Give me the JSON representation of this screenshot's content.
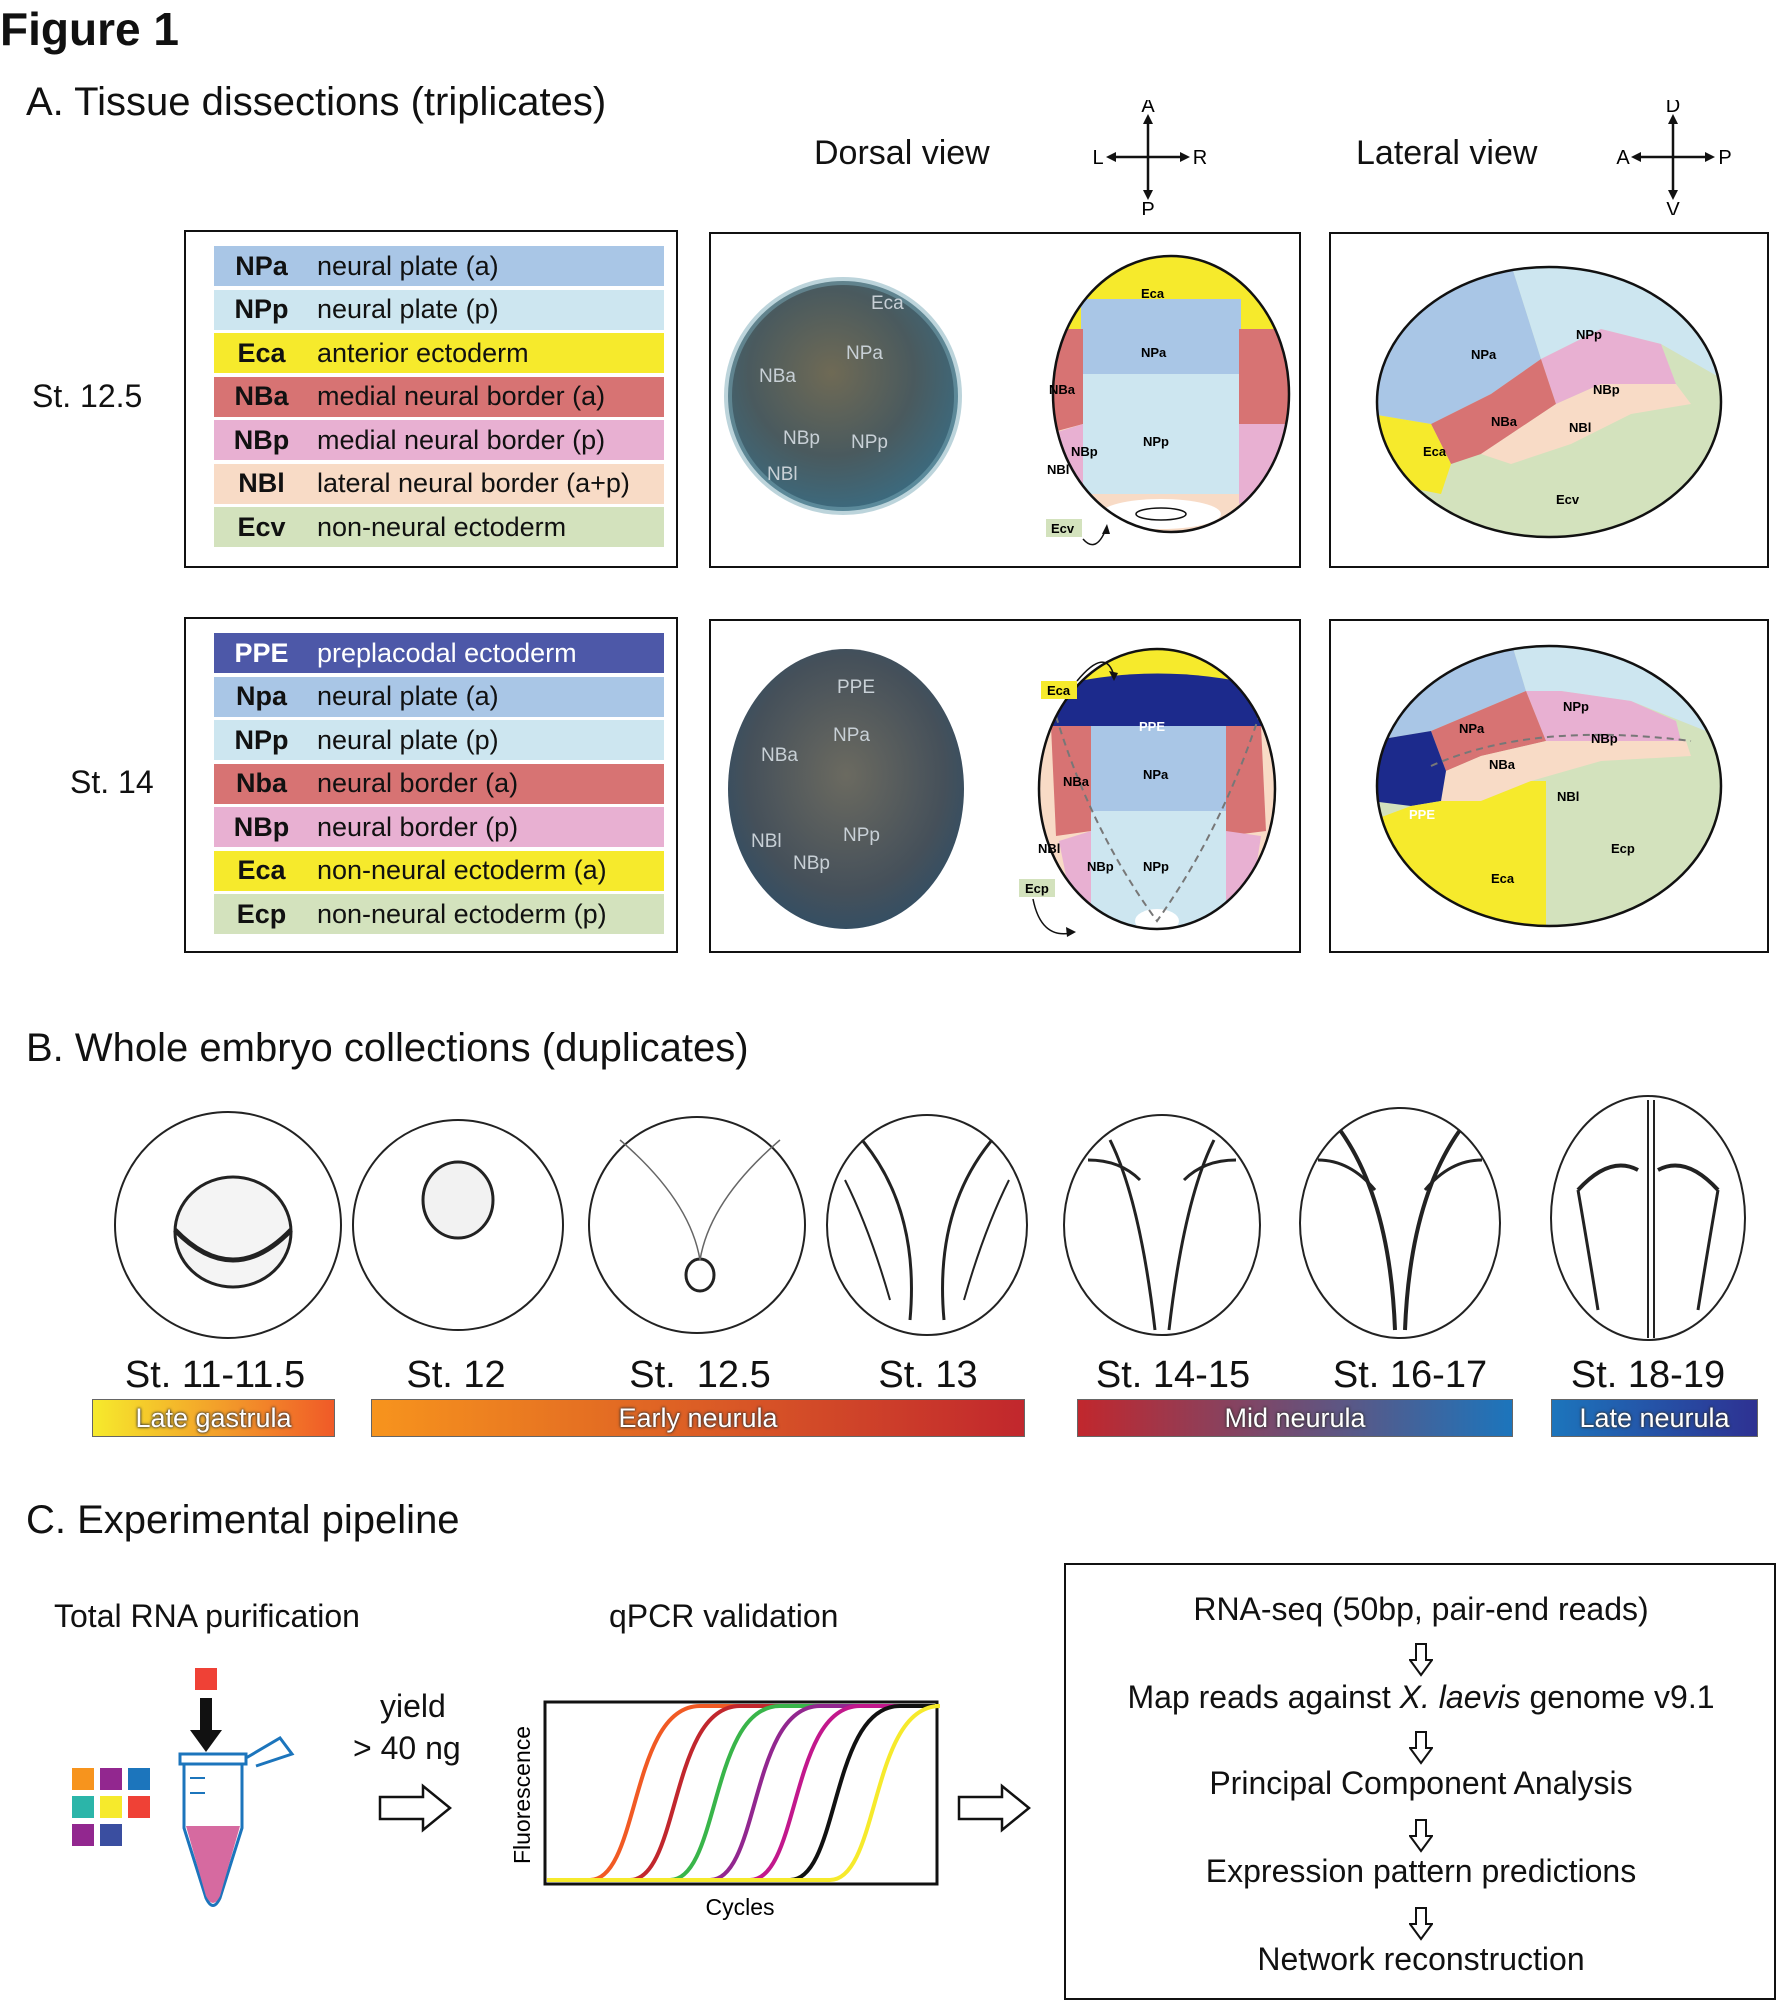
{
  "figure_title": "Figure 1",
  "panel_a": {
    "title": "A. Tissue dissections (triplicates)",
    "dorsal_view": "Dorsal view",
    "lateral_view": "Lateral view",
    "dorsal_axes": {
      "top": "A",
      "bottom": "P",
      "left": "L",
      "right": "R"
    },
    "lateral_axes": {
      "top": "D",
      "bottom": "V",
      "left": "A",
      "right": "P"
    },
    "stages": [
      {
        "label": "St. 12.5",
        "legend": [
          {
            "code": "NPa",
            "desc": "neural plate (a)",
            "color": "#a9c6e6"
          },
          {
            "code": "NPp",
            "desc": "neural plate (p)",
            "color": "#cde6f0"
          },
          {
            "code": "Eca",
            "desc": "anterior ectoderm",
            "color": "#f6ea2c"
          },
          {
            "code": "NBa",
            "desc": "medial neural border (a)",
            "color": "#d77373"
          },
          {
            "code": "NBp",
            "desc": "medial neural border (p)",
            "color": "#e8b0d2"
          },
          {
            "code": "NBl",
            "desc": "lateral neural border (a+p)",
            "color": "#f8dbc6"
          },
          {
            "code": "Ecv",
            "desc": "non-neural ectoderm",
            "color": "#d3e2bd"
          }
        ],
        "photo_labels": [
          "Eca",
          "NPa",
          "NBa",
          "NBp",
          "NPp",
          "NBl"
        ],
        "schematic_labels": [
          "Eca",
          "NPa",
          "NBa",
          "NBp",
          "NPp",
          "NBl",
          "Ecv"
        ],
        "lateral_labels": [
          "NPa",
          "NPp",
          "NBp",
          "NBa",
          "NBl",
          "Eca",
          "Ecv"
        ]
      },
      {
        "label": "St. 14",
        "legend": [
          {
            "code": "PPE",
            "desc": "preplacodal ectoderm",
            "color": "#4d58a8"
          },
          {
            "code": "Npa",
            "desc": "neural plate (a)",
            "color": "#a9c6e6"
          },
          {
            "code": "NPp",
            "desc": "neural plate (p)",
            "color": "#cde6f0"
          },
          {
            "code": "Nba",
            "desc": "neural border (a)",
            "color": "#d77373"
          },
          {
            "code": "NBp",
            "desc": "neural border (p)",
            "color": "#e8b0d2"
          },
          {
            "code": "Eca",
            "desc": "non-neural ectoderm (a)",
            "color": "#f6ea2c"
          },
          {
            "code": "Ecp",
            "desc": "non-neural ectoderm (p)",
            "color": "#d3e2bd"
          }
        ],
        "photo_labels": [
          "PPE",
          "NPa",
          "NBa",
          "NBl",
          "NPp",
          "NBp"
        ],
        "schematic_labels": [
          "Eca",
          "PPE",
          "NBa",
          "NPa",
          "NBl",
          "NBp",
          "NPp",
          "Ecp"
        ],
        "lateral_labels": [
          "NPp",
          "NPa",
          "NBp",
          "NBa",
          "NBl",
          "PPE",
          "Ecp",
          "Eca"
        ]
      }
    ]
  },
  "panel_b": {
    "title": "B. Whole embryo collections (duplicates)",
    "stages": [
      "St. 11-11.5",
      "St. 12",
      "St.  12.5",
      "St. 13",
      "St. 14-15",
      "St. 16-17",
      "St. 18-19"
    ],
    "phases": [
      {
        "label": "Late gastrula",
        "from": "#f6ea2c",
        "to": "#f05a28"
      },
      {
        "label": "Early neurula",
        "from": "#f7941d",
        "to": "#c1272d"
      },
      {
        "label": "Mid neurula",
        "from": "#c1272d",
        "to": "#1c75bc"
      },
      {
        "label": "Late neurula",
        "from": "#1c75bc",
        "to": "#2e3192"
      }
    ]
  },
  "panel_c": {
    "title": "C. Experimental pipeline",
    "rna_label": "Total RNA purification",
    "yield_label_1": "yield",
    "yield_label_2": "> 40 ng",
    "qpcr_label": "qPCR validation",
    "y_axis": "Fluorescence",
    "x_axis": "Cycles",
    "sample_colors": [
      "#f7941d",
      "#92278f",
      "#1c75bc",
      "#2bb5a9",
      "#f6ea2c",
      "#ef4136",
      "#92278f",
      "#3a4ea0"
    ],
    "curve_colors": [
      "#f15a24",
      "#c1272d",
      "#39b54a",
      "#92278f",
      "#c2188c",
      "#111111",
      "#f6ea2c"
    ],
    "steps": [
      {
        "pre": "RNA-seq (50bp, pair-end reads)",
        "em": "",
        "post": ""
      },
      {
        "pre": "Map reads against ",
        "em": "X. laevis",
        "post": " genome v9.1"
      },
      {
        "pre": "Principal Component Analysis",
        "em": "",
        "post": ""
      },
      {
        "pre": "Expression pattern predictions",
        "em": "",
        "post": ""
      },
      {
        "pre": "Network reconstruction",
        "em": "",
        "post": ""
      }
    ]
  }
}
